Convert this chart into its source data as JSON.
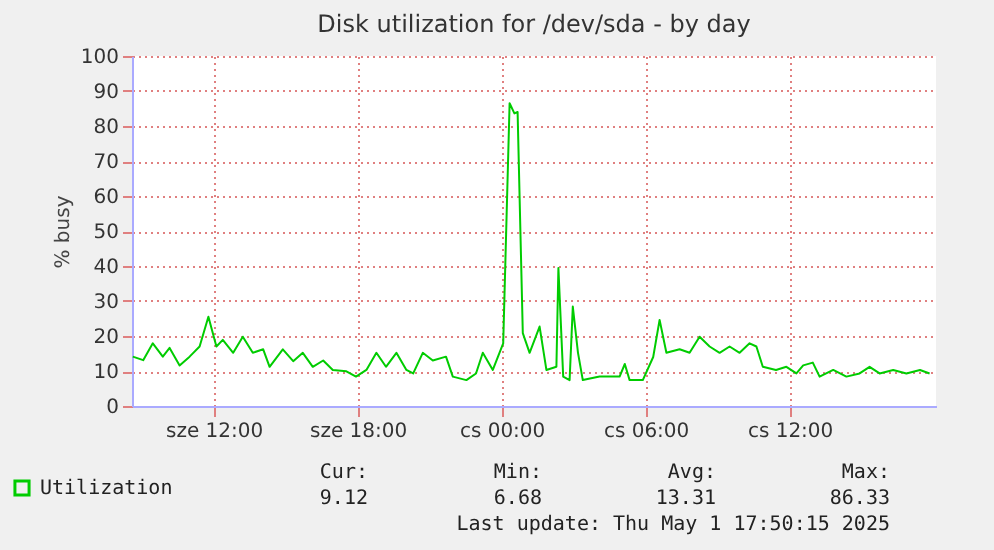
{
  "chart_data": {
    "type": "line",
    "title": "Disk utilization for /dev/sda - by day",
    "ylabel": "% busy",
    "x": [
      "2025-04-30T08:38",
      "2025-04-30T09:04",
      "2025-04-30T09:28",
      "2025-04-30T09:53",
      "2025-04-30T10:10",
      "2025-04-30T10:35",
      "2025-04-30T11:00",
      "2025-04-30T11:25",
      "2025-04-30T11:47",
      "2025-04-30T12:07",
      "2025-04-30T12:23",
      "2025-04-30T12:49",
      "2025-04-30T13:13",
      "2025-04-30T13:38",
      "2025-04-30T14:04",
      "2025-04-30T14:20",
      "2025-04-30T14:53",
      "2025-04-30T15:19",
      "2025-04-30T15:43",
      "2025-04-30T16:08",
      "2025-04-30T16:34",
      "2025-04-30T16:58",
      "2025-04-30T17:32",
      "2025-04-30T17:56",
      "2025-04-30T18:22",
      "2025-04-30T18:47",
      "2025-04-30T19:11",
      "2025-04-30T19:37",
      "2025-04-30T20:02",
      "2025-04-30T20:19",
      "2025-04-30T20:43",
      "2025-04-30T21:08",
      "2025-04-30T21:41",
      "2025-04-30T21:58",
      "2025-04-30T22:32",
      "2025-04-30T22:56",
      "2025-04-30T23:13",
      "2025-04-30T23:38",
      "2025-05-01T00:04",
      "2025-05-01T00:20",
      "2025-05-01T00:32",
      "2025-05-01T00:40",
      "2025-05-01T00:53",
      "2025-05-01T01:10",
      "2025-05-01T01:35",
      "2025-05-01T01:52",
      "2025-05-01T02:17",
      "2025-05-01T02:22",
      "2025-05-01T02:34",
      "2025-05-01T02:50",
      "2025-05-01T02:58",
      "2025-05-01T03:11",
      "2025-05-01T03:23",
      "2025-05-01T04:05",
      "2025-05-01T04:55",
      "2025-05-01T05:08",
      "2025-05-01T05:20",
      "2025-05-01T05:53",
      "2025-05-01T06:19",
      "2025-05-01T06:35",
      "2025-05-01T06:52",
      "2025-05-01T07:25",
      "2025-05-01T07:50",
      "2025-05-01T08:15",
      "2025-05-01T08:40",
      "2025-05-01T09:05",
      "2025-05-01T09:30",
      "2025-05-01T09:55",
      "2025-05-01T10:20",
      "2025-05-01T10:37",
      "2025-05-01T10:53",
      "2025-05-01T11:26",
      "2025-05-01T11:52",
      "2025-05-01T12:17",
      "2025-05-01T12:34",
      "2025-05-01T12:58",
      "2025-05-01T13:15",
      "2025-05-01T13:49",
      "2025-05-01T14:22",
      "2025-05-01T14:55",
      "2025-05-01T15:20",
      "2025-05-01T15:45",
      "2025-05-01T16:19",
      "2025-05-01T16:52",
      "2025-05-01T17:26",
      "2025-05-01T17:50"
    ],
    "series": [
      {
        "name": "Utilization",
        "color": "#00cc00",
        "values": [
          14.1,
          13.1,
          17.9,
          14.1,
          16.6,
          11.6,
          14.1,
          17.0,
          25.5,
          17.0,
          18.9,
          15.2,
          19.8,
          15.2,
          16.2,
          11.2,
          16.2,
          12.8,
          15.2,
          11.2,
          13.0,
          10.3,
          9.9,
          8.4,
          10.3,
          15.2,
          11.2,
          15.2,
          10.3,
          9.3,
          15.2,
          13.0,
          14.1,
          8.4,
          7.4,
          9.3,
          15.2,
          10.3,
          17.9,
          86.5,
          83.6,
          84.0,
          20.8,
          15.2,
          22.7,
          10.3,
          11.2,
          39.4,
          8.4,
          7.4,
          28.4,
          15.2,
          7.4,
          8.4,
          8.4,
          12.0,
          7.4,
          7.4,
          14.0,
          24.6,
          15.2,
          16.2,
          15.2,
          19.8,
          17.0,
          15.2,
          17.0,
          15.2,
          17.9,
          17.0,
          11.2,
          10.3,
          11.2,
          9.3,
          11.6,
          12.4,
          8.4,
          10.3,
          8.4,
          9.3,
          11.2,
          9.3,
          10.3,
          9.3,
          10.3,
          9.3
        ]
      }
    ],
    "xlim": [
      "2025-04-30T08:36",
      "2025-05-01T18:06"
    ],
    "xticks": [
      {
        "value": "2025-04-30T12:00",
        "label": "sze 12:00"
      },
      {
        "value": "2025-04-30T18:00",
        "label": "sze 18:00"
      },
      {
        "value": "2025-05-01T00:00",
        "label": "cs 00:00"
      },
      {
        "value": "2025-05-01T06:00",
        "label": "cs 06:00"
      },
      {
        "value": "2025-05-01T12:00",
        "label": "cs 12:00"
      }
    ],
    "ylim": [
      0,
      100
    ],
    "yticks": [
      0,
      10,
      20,
      30,
      40,
      50,
      60,
      70,
      80,
      90,
      100
    ],
    "grid": true,
    "legend": "bottom left",
    "annotations": [
      "Cur:",
      "Min:",
      "Avg:",
      "Max:",
      "9.12",
      "6.68",
      "13.31",
      "86.33",
      "Last update: Thu May  1 17:50:15 2025"
    ]
  }
}
